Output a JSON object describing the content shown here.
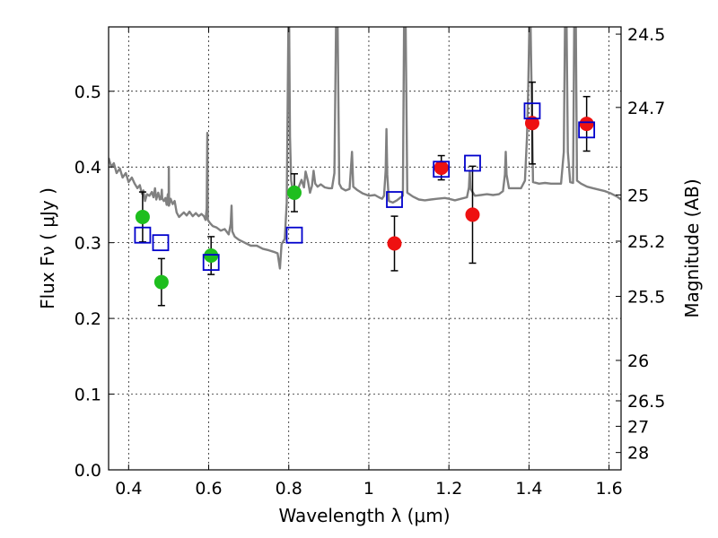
{
  "chart_data": {
    "type": "scatter",
    "title": "",
    "xlabel": "Wavelength  λ (μm)",
    "ylabel": "Flux  Fν  ( μJy )",
    "y2label": "Magnitude (AB)",
    "xlim": [
      0.35,
      1.63
    ],
    "ylim": [
      0.0,
      0.585
    ],
    "grid": true,
    "xticks": [
      {
        "value": 0.4,
        "label": "0.4"
      },
      {
        "value": 0.6,
        "label": "0.6"
      },
      {
        "value": 0.8,
        "label": "0.8"
      },
      {
        "value": 1.0,
        "label": "1"
      },
      {
        "value": 1.2,
        "label": "1.2"
      },
      {
        "value": 1.4,
        "label": "1.4"
      },
      {
        "value": 1.6,
        "label": "1.6"
      }
    ],
    "yticks": [
      {
        "value": 0.0,
        "label": "0.0"
      },
      {
        "value": 0.1,
        "label": "0.1"
      },
      {
        "value": 0.2,
        "label": "0.2"
      },
      {
        "value": 0.3,
        "label": "0.3"
      },
      {
        "value": 0.4,
        "label": "0.4"
      },
      {
        "value": 0.5,
        "label": "0.5"
      }
    ],
    "y2ticks": [
      {
        "mag": 24.5,
        "label": "24.5"
      },
      {
        "mag": 24.7,
        "label": "24.7"
      },
      {
        "mag": 25.0,
        "label": "25"
      },
      {
        "mag": 25.2,
        "label": "25.2"
      },
      {
        "mag": 25.5,
        "label": "25.5"
      },
      {
        "mag": 26.0,
        "label": "26"
      },
      {
        "mag": 26.5,
        "label": "26.5"
      },
      {
        "mag": 27.0,
        "label": "27"
      },
      {
        "mag": 28.0,
        "label": "28"
      }
    ],
    "series": [
      {
        "name": "green-photometry",
        "color": "#1ebe1e",
        "marker": "filled-circle",
        "points": [
          {
            "x": 0.435,
            "y": 0.334,
            "err": 0.033
          },
          {
            "x": 0.482,
            "y": 0.248,
            "err": 0.031
          },
          {
            "x": 0.606,
            "y": 0.283,
            "err": 0.025
          },
          {
            "x": 0.814,
            "y": 0.366,
            "err": 0.025
          }
        ]
      },
      {
        "name": "red-photometry",
        "color": "#ee1111",
        "marker": "filled-circle",
        "points": [
          {
            "x": 1.064,
            "y": 0.299,
            "err": 0.036
          },
          {
            "x": 1.181,
            "y": 0.399,
            "err": 0.016
          },
          {
            "x": 1.259,
            "y": 0.337,
            "err": 0.064
          },
          {
            "x": 1.408,
            "y": 0.458,
            "err": 0.054
          },
          {
            "x": 1.544,
            "y": 0.457,
            "err": 0.036
          }
        ]
      },
      {
        "name": "model-photometry",
        "color": "#0000cc",
        "marker": "open-square",
        "points": [
          {
            "x": 0.435,
            "y": 0.31
          },
          {
            "x": 0.48,
            "y": 0.3
          },
          {
            "x": 0.606,
            "y": 0.274
          },
          {
            "x": 0.814,
            "y": 0.31
          },
          {
            "x": 1.064,
            "y": 0.357
          },
          {
            "x": 1.181,
            "y": 0.397
          },
          {
            "x": 1.259,
            "y": 0.405
          },
          {
            "x": 1.408,
            "y": 0.474
          },
          {
            "x": 1.544,
            "y": 0.449
          }
        ]
      },
      {
        "name": "model-spectrum",
        "color": "#808080",
        "type": "line",
        "points": [
          [
            0.35,
            0.412
          ],
          [
            0.357,
            0.4
          ],
          [
            0.363,
            0.405
          ],
          [
            0.37,
            0.392
          ],
          [
            0.378,
            0.398
          ],
          [
            0.385,
            0.386
          ],
          [
            0.393,
            0.392
          ],
          [
            0.4,
            0.38
          ],
          [
            0.408,
            0.386
          ],
          [
            0.415,
            0.378
          ],
          [
            0.422,
            0.372
          ],
          [
            0.428,
            0.376
          ],
          [
            0.433,
            0.365
          ],
          [
            0.437,
            0.369
          ],
          [
            0.441,
            0.355
          ],
          [
            0.446,
            0.364
          ],
          [
            0.452,
            0.362
          ],
          [
            0.458,
            0.367
          ],
          [
            0.462,
            0.36
          ],
          [
            0.466,
            0.372
          ],
          [
            0.469,
            0.357
          ],
          [
            0.474,
            0.366
          ],
          [
            0.478,
            0.357
          ],
          [
            0.481,
            0.358
          ],
          [
            0.483,
            0.37
          ],
          [
            0.484,
            0.358
          ],
          [
            0.488,
            0.355
          ],
          [
            0.492,
            0.359
          ],
          [
            0.495,
            0.35
          ],
          [
            0.498,
            0.364
          ],
          [
            0.5,
            0.349
          ],
          [
            0.5005,
            0.4
          ],
          [
            0.501,
            0.349
          ],
          [
            0.505,
            0.358
          ],
          [
            0.51,
            0.351
          ],
          [
            0.515,
            0.355
          ],
          [
            0.52,
            0.34
          ],
          [
            0.526,
            0.334
          ],
          [
            0.532,
            0.337
          ],
          [
            0.538,
            0.34
          ],
          [
            0.545,
            0.336
          ],
          [
            0.552,
            0.341
          ],
          [
            0.56,
            0.335
          ],
          [
            0.568,
            0.339
          ],
          [
            0.575,
            0.335
          ],
          [
            0.582,
            0.338
          ],
          [
            0.588,
            0.335
          ],
          [
            0.592,
            0.33
          ],
          [
            0.595,
            0.345
          ],
          [
            0.5965,
            0.445
          ],
          [
            0.598,
            0.33
          ],
          [
            0.603,
            0.326
          ],
          [
            0.61,
            0.322
          ],
          [
            0.62,
            0.32
          ],
          [
            0.63,
            0.316
          ],
          [
            0.64,
            0.318
          ],
          [
            0.65,
            0.311
          ],
          [
            0.655,
            0.325
          ],
          [
            0.657,
            0.349
          ],
          [
            0.659,
            0.315
          ],
          [
            0.665,
            0.308
          ],
          [
            0.675,
            0.304
          ],
          [
            0.69,
            0.3
          ],
          [
            0.705,
            0.296
          ],
          [
            0.72,
            0.296
          ],
          [
            0.735,
            0.292
          ],
          [
            0.75,
            0.29
          ],
          [
            0.762,
            0.288
          ],
          [
            0.772,
            0.286
          ],
          [
            0.778,
            0.266
          ],
          [
            0.782,
            0.298
          ],
          [
            0.79,
            0.305
          ],
          [
            0.795,
            0.353
          ],
          [
            0.797,
            0.468
          ],
          [
            0.799,
            0.585
          ],
          [
            0.801,
            0.585
          ],
          [
            0.803,
            0.44
          ],
          [
            0.806,
            0.382
          ],
          [
            0.81,
            0.369
          ],
          [
            0.815,
            0.371
          ],
          [
            0.82,
            0.365
          ],
          [
            0.826,
            0.375
          ],
          [
            0.832,
            0.383
          ],
          [
            0.838,
            0.373
          ],
          [
            0.842,
            0.394
          ],
          [
            0.848,
            0.381
          ],
          [
            0.853,
            0.366
          ],
          [
            0.858,
            0.375
          ],
          [
            0.862,
            0.395
          ],
          [
            0.866,
            0.378
          ],
          [
            0.872,
            0.374
          ],
          [
            0.88,
            0.377
          ],
          [
            0.89,
            0.373
          ],
          [
            0.9,
            0.372
          ],
          [
            0.908,
            0.372
          ],
          [
            0.914,
            0.392
          ],
          [
            0.918,
            0.585
          ],
          [
            0.922,
            0.585
          ],
          [
            0.926,
            0.378
          ],
          [
            0.932,
            0.372
          ],
          [
            0.942,
            0.369
          ],
          [
            0.952,
            0.371
          ],
          [
            0.958,
            0.42
          ],
          [
            0.961,
            0.374
          ],
          [
            0.97,
            0.37
          ],
          [
            0.985,
            0.365
          ],
          [
            1.0,
            0.362
          ],
          [
            1.015,
            0.363
          ],
          [
            1.025,
            0.36
          ],
          [
            1.033,
            0.358
          ],
          [
            1.038,
            0.362
          ],
          [
            1.042,
            0.395
          ],
          [
            1.044,
            0.45
          ],
          [
            1.046,
            0.39
          ],
          [
            1.05,
            0.355
          ],
          [
            1.06,
            0.353
          ],
          [
            1.07,
            0.356
          ],
          [
            1.08,
            0.36
          ],
          [
            1.085,
            0.362
          ],
          [
            1.088,
            0.585
          ],
          [
            1.092,
            0.585
          ],
          [
            1.096,
            0.366
          ],
          [
            1.11,
            0.361
          ],
          [
            1.125,
            0.357
          ],
          [
            1.14,
            0.356
          ],
          [
            1.155,
            0.357
          ],
          [
            1.17,
            0.358
          ],
          [
            1.19,
            0.359
          ],
          [
            1.2,
            0.358
          ],
          [
            1.215,
            0.356
          ],
          [
            1.23,
            0.358
          ],
          [
            1.245,
            0.36
          ],
          [
            1.25,
            0.373
          ],
          [
            1.252,
            0.395
          ],
          [
            1.254,
            0.371
          ],
          [
            1.265,
            0.362
          ],
          [
            1.28,
            0.363
          ],
          [
            1.295,
            0.364
          ],
          [
            1.31,
            0.363
          ],
          [
            1.325,
            0.364
          ],
          [
            1.335,
            0.368
          ],
          [
            1.34,
            0.39
          ],
          [
            1.342,
            0.42
          ],
          [
            1.344,
            0.39
          ],
          [
            1.35,
            0.372
          ],
          [
            1.365,
            0.372
          ],
          [
            1.38,
            0.372
          ],
          [
            1.39,
            0.382
          ],
          [
            1.395,
            0.44
          ],
          [
            1.398,
            0.5
          ],
          [
            1.401,
            0.585
          ],
          [
            1.404,
            0.585
          ],
          [
            1.41,
            0.38
          ],
          [
            1.425,
            0.378
          ],
          [
            1.44,
            0.379
          ],
          [
            1.455,
            0.378
          ],
          [
            1.47,
            0.378
          ],
          [
            1.48,
            0.378
          ],
          [
            1.487,
            0.42
          ],
          [
            1.49,
            0.585
          ],
          [
            1.494,
            0.585
          ],
          [
            1.497,
            0.42
          ],
          [
            1.503,
            0.38
          ],
          [
            1.51,
            0.379
          ],
          [
            1.513,
            0.585
          ],
          [
            1.517,
            0.585
          ],
          [
            1.52,
            0.382
          ],
          [
            1.53,
            0.378
          ],
          [
            1.545,
            0.374
          ],
          [
            1.56,
            0.372
          ],
          [
            1.575,
            0.37
          ],
          [
            1.59,
            0.368
          ],
          [
            1.605,
            0.365
          ],
          [
            1.62,
            0.361
          ],
          [
            1.63,
            0.357
          ]
        ]
      }
    ]
  }
}
